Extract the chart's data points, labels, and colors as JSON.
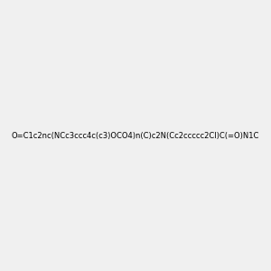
{
  "smiles": "O=C1c2nc(NCc3ccc4c(c3)OCO4)n(C)c2N(Cc2ccccc2Cl)C(=O)N1C",
  "image_size": 300,
  "background_color": "#f0f0f0",
  "title": "",
  "mol_colors": {
    "C": "#000000",
    "N": "#0000ff",
    "O": "#ff0000",
    "Cl": "#00aa00",
    "H": "#888888"
  }
}
